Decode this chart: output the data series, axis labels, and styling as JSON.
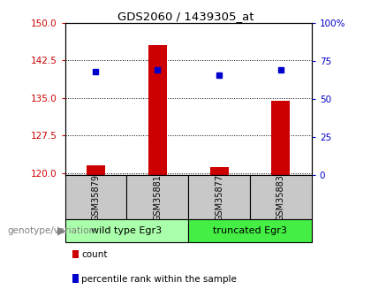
{
  "title": "GDS2060 / 1439305_at",
  "samples": [
    "GSM35879",
    "GSM35881",
    "GSM35877",
    "GSM35883"
  ],
  "group_labels": [
    "wild type Egr3",
    "truncated Egr3"
  ],
  "count_values": [
    121.5,
    145.5,
    121.2,
    134.5
  ],
  "percentile_values": [
    68,
    69,
    66,
    69
  ],
  "ylim_left": [
    119.5,
    150
  ],
  "ylim_right": [
    0,
    100
  ],
  "yticks_left": [
    120,
    127.5,
    135,
    142.5,
    150
  ],
  "yticks_right": [
    0,
    25,
    50,
    75,
    100
  ],
  "bar_color": "#cc0000",
  "dot_color": "#0000cc",
  "tick_color_left": "#cc0000",
  "tick_color_right": "#0000cc",
  "group_label": "genotype/variation",
  "legend_count": "count",
  "legend_pct": "percentile rank within the sample",
  "group1_color": "#aaffaa",
  "group2_color": "#44ee44",
  "sample_box_color": "#c8c8c8"
}
